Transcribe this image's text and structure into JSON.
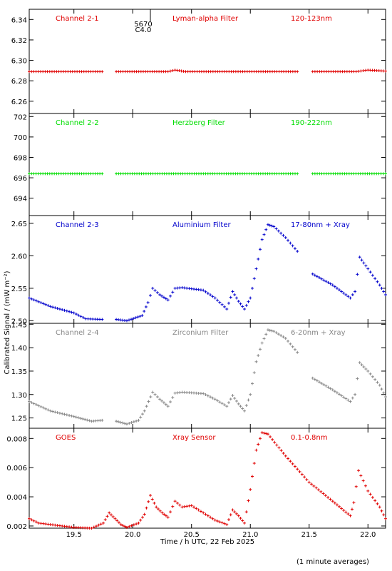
{
  "chart_data": {
    "type": "scatter",
    "xlabel": "Time / h UTC, 22 Feb 2025",
    "ylabel": "Calibrated Signal / (mW m⁻²)",
    "xlim": [
      19.12,
      22.15
    ],
    "xticks": [
      "19.5",
      "20.0",
      "20.5",
      "21.0",
      "21.5",
      "22.0"
    ],
    "xtick_values": [
      19.5,
      20.0,
      20.5,
      21.0,
      21.5,
      22.0
    ],
    "annotation": {
      "x": 20.15,
      "lines": [
        "5670",
        "C4.0"
      ]
    },
    "footnote": "(1 minute averages)",
    "panels": [
      {
        "channel": "Channel 2-1",
        "filter": "Lyman-alpha Filter",
        "band": "120-123nm",
        "color": "#e00000",
        "ylim": [
          6.248,
          6.35
        ],
        "yticks": [
          "6.26",
          "6.28",
          "6.30",
          "6.32",
          "6.34"
        ],
        "ytick_values": [
          6.26,
          6.28,
          6.3,
          6.32,
          6.34
        ],
        "series": [
          {
            "x": [
              19.12,
              19.74
            ],
            "y": [
              6.289,
              6.289
            ]
          },
          {
            "x": [
              19.86,
              20.3,
              20.36,
              20.45,
              21.4
            ],
            "y": [
              6.289,
              6.289,
              6.2905,
              6.289,
              6.289
            ]
          },
          {
            "x": [
              21.53,
              21.9,
              22.0,
              22.15
            ],
            "y": [
              6.289,
              6.289,
              6.2905,
              6.2895
            ]
          }
        ]
      },
      {
        "channel": "Channel 2-2",
        "filter": "Herzberg Filter",
        "band": "190-222nm",
        "color": "#00dd00",
        "ylim": [
          692.3,
          702.3
        ],
        "yticks": [
          "694",
          "696",
          "698",
          "700",
          "702"
        ],
        "ytick_values": [
          694,
          696,
          698,
          700,
          702
        ],
        "series": [
          {
            "x": [
              19.12,
              19.74
            ],
            "y": [
              696.4,
              696.4
            ]
          },
          {
            "x": [
              19.86,
              21.4
            ],
            "y": [
              696.4,
              696.4
            ]
          },
          {
            "x": [
              21.53,
              22.15
            ],
            "y": [
              696.4,
              696.4
            ]
          }
        ]
      },
      {
        "channel": "Channel 2-3",
        "filter": "Aluminium Filter",
        "band": "17-80nm + Xray",
        "color": "#0000cc",
        "ylim": [
          2.496,
          2.662
        ],
        "yticks": [
          "2.50",
          "2.55",
          "2.60",
          "2.65"
        ],
        "ytick_values": [
          2.5,
          2.55,
          2.6,
          2.65
        ],
        "series": [
          {
            "x": [
              19.12,
              19.3,
              19.5,
              19.6,
              19.74
            ],
            "y": [
              2.535,
              2.522,
              2.512,
              2.503,
              2.502
            ]
          },
          {
            "x": [
              19.86,
              19.95,
              20.08,
              20.13,
              20.17,
              20.23,
              20.3,
              20.36,
              20.42,
              20.6,
              20.7,
              20.8,
              20.85,
              20.9,
              20.95,
              21.0,
              21.05,
              21.1,
              21.15,
              21.2,
              21.3,
              21.4
            ],
            "y": [
              2.502,
              2.5,
              2.508,
              2.528,
              2.55,
              2.54,
              2.532,
              2.55,
              2.551,
              2.547,
              2.535,
              2.518,
              2.545,
              2.53,
              2.518,
              2.535,
              2.58,
              2.625,
              2.648,
              2.645,
              2.628,
              2.607
            ]
          },
          {
            "x": [
              21.53,
              21.7,
              21.85,
              21.89,
              21.93,
              22.0,
              22.1,
              22.15
            ],
            "y": [
              2.572,
              2.555,
              2.535,
              2.545,
              2.598,
              2.58,
              2.555,
              2.54
            ]
          }
        ]
      },
      {
        "channel": "Channel 2-4",
        "filter": "Zirconium Filter",
        "band": "6-20nm + Xray",
        "color": "#888888",
        "ylim": [
          1.228,
          1.452
        ],
        "yticks": [
          "1.25",
          "1.30",
          "1.35",
          "1.40",
          "1.45"
        ],
        "ytick_values": [
          1.25,
          1.3,
          1.35,
          1.4,
          1.45
        ],
        "series": [
          {
            "x": [
              19.12,
              19.3,
              19.5,
              19.65,
              19.74
            ],
            "y": [
              1.285,
              1.265,
              1.253,
              1.243,
              1.245
            ]
          },
          {
            "x": [
              19.86,
              19.95,
              20.05,
              20.1,
              20.17,
              20.23,
              20.3,
              20.36,
              20.42,
              20.6,
              20.7,
              20.8,
              20.85,
              20.9,
              20.95,
              21.0,
              21.05,
              21.1,
              21.15,
              21.2,
              21.3,
              21.4
            ],
            "y": [
              1.243,
              1.237,
              1.245,
              1.265,
              1.305,
              1.29,
              1.275,
              1.303,
              1.305,
              1.302,
              1.29,
              1.275,
              1.298,
              1.28,
              1.265,
              1.3,
              1.37,
              1.41,
              1.438,
              1.435,
              1.42,
              1.39
            ]
          },
          {
            "x": [
              21.53,
              21.7,
              21.85,
              21.89,
              21.93,
              22.0,
              22.1,
              22.15
            ],
            "y": [
              1.335,
              1.31,
              1.285,
              1.3,
              1.368,
              1.35,
              1.32,
              1.295
            ]
          }
        ]
      },
      {
        "channel": "GOES",
        "filter": "Xray Sensor",
        "band": "0.1-0.8nm",
        "color": "#e00000",
        "ylim": [
          0.00185,
          0.0087
        ],
        "yticks": [
          "0.002",
          "0.004",
          "0.006",
          "0.008"
        ],
        "ytick_values": [
          0.002,
          0.004,
          0.006,
          0.008
        ],
        "series": [
          {
            "x": [
              19.12,
              19.2,
              19.3,
              19.5,
              19.65,
              19.75,
              19.8,
              19.85,
              19.9,
              19.95,
              20.05,
              20.1,
              20.15,
              20.2,
              20.25,
              20.3,
              20.36,
              20.42,
              20.5,
              20.6,
              20.7,
              20.8,
              20.85,
              20.9,
              20.95,
              21.0,
              21.05,
              21.1,
              21.15,
              21.3,
              21.5,
              21.7,
              21.85,
              21.88,
              21.92,
              22.0,
              22.1,
              22.15
            ],
            "y": [
              0.0025,
              0.0022,
              0.0021,
              0.0019,
              0.00185,
              0.0022,
              0.0029,
              0.0025,
              0.0021,
              0.0019,
              0.0022,
              0.0028,
              0.0041,
              0.0033,
              0.0029,
              0.0026,
              0.0037,
              0.0033,
              0.0034,
              0.0029,
              0.0024,
              0.0021,
              0.0031,
              0.0027,
              0.0022,
              0.0045,
              0.0072,
              0.0084,
              0.0083,
              0.0068,
              0.005,
              0.0037,
              0.0027,
              0.0036,
              0.0058,
              0.0044,
              0.0033,
              0.0025
            ]
          }
        ]
      }
    ]
  }
}
